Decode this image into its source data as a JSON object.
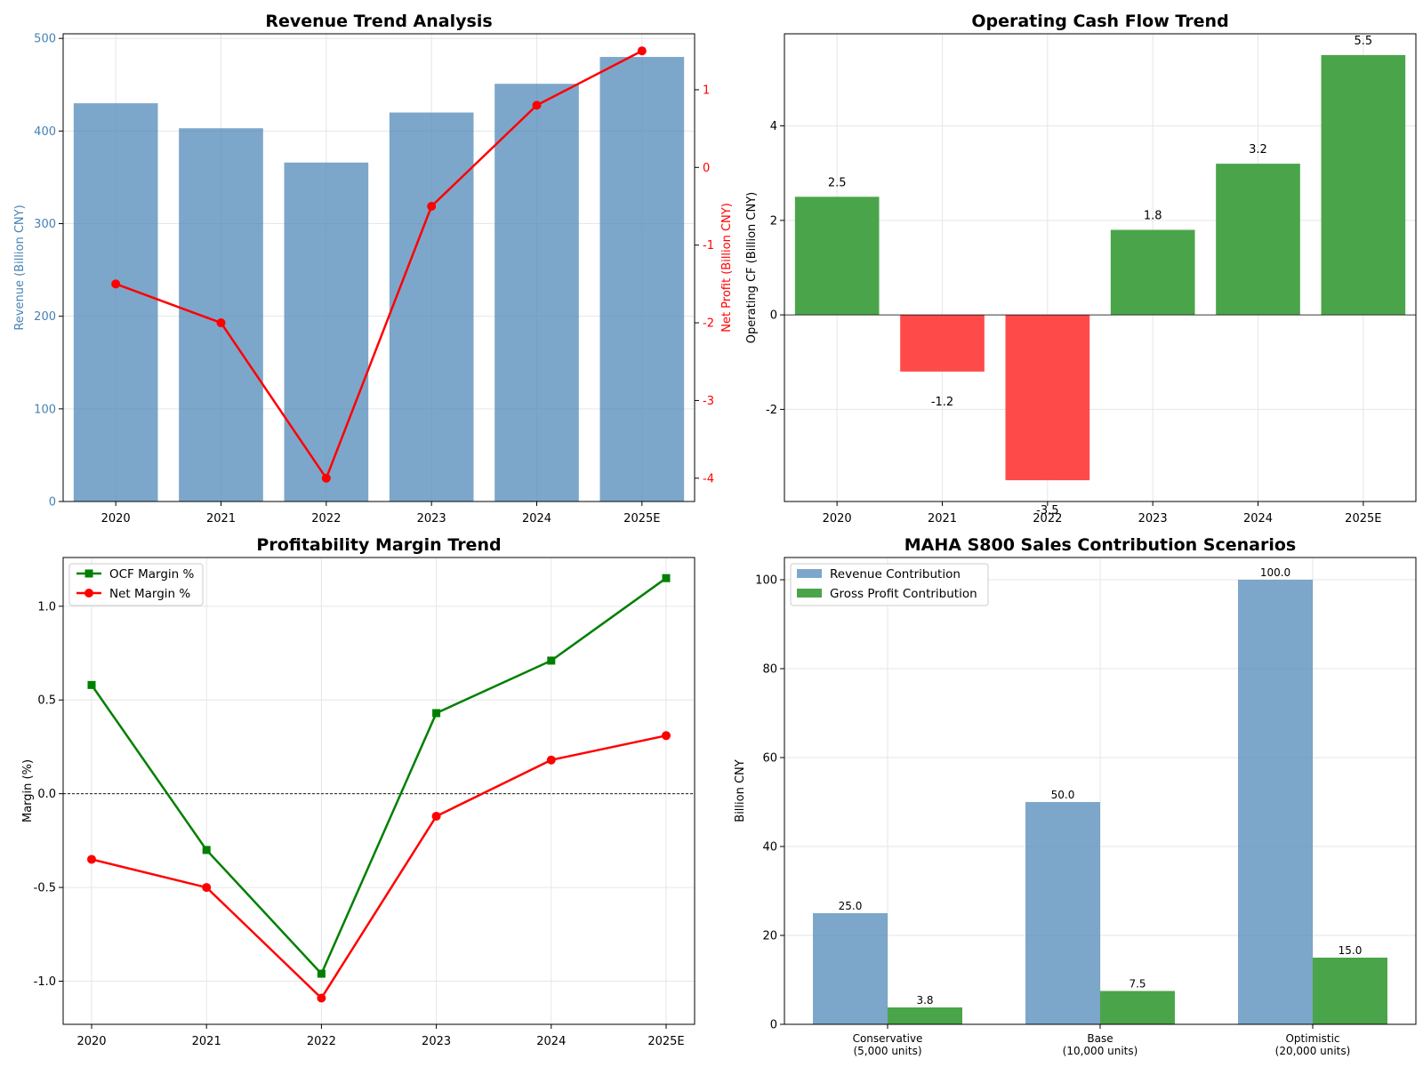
{
  "chart_data": [
    {
      "type": "bar",
      "title": "Revenue Trend Analysis",
      "categories": [
        "2020",
        "2021",
        "2022",
        "2023",
        "2024",
        "2025E"
      ],
      "ylabel": "Revenue (Billion CNY)",
      "y2label": "Net Profit (Billion CNY)",
      "ylim": [
        0,
        505
      ],
      "y2lim": [
        -4.3,
        1.72
      ],
      "yticks": [
        "0",
        "100",
        "200",
        "300",
        "400",
        "500"
      ],
      "y2ticks": [
        "-4",
        "-3",
        "-2",
        "-1",
        "0",
        "1"
      ],
      "grid": true,
      "series": [
        {
          "name": "Revenue",
          "type": "bar",
          "axis": "left",
          "color": "#4682b4",
          "values": [
            430,
            403,
            366,
            420,
            451,
            480
          ]
        },
        {
          "name": "Net Profit",
          "type": "line",
          "axis": "right",
          "color": "#ff0000",
          "marker": "circle",
          "values": [
            -1.5,
            -2.0,
            -4.0,
            -0.5,
            0.8,
            1.5
          ]
        }
      ],
      "colors": {
        "left_axis": "#4682b4",
        "right_axis": "#ff0000"
      }
    },
    {
      "type": "bar",
      "title": "Operating Cash Flow Trend",
      "categories": [
        "2020",
        "2021",
        "2022",
        "2023",
        "2024",
        "2025E"
      ],
      "ylabel": "Operating CF (Billion CNY)",
      "ylim": [
        -3.95,
        5.95
      ],
      "yticks": [
        "-2",
        "0",
        "2",
        "4"
      ],
      "grid": true,
      "values": [
        2.5,
        -1.2,
        -3.5,
        1.8,
        3.2,
        5.5
      ],
      "data_labels": [
        "2.5",
        "-1.2",
        "-3.5",
        "1.8",
        "3.2",
        "5.5"
      ],
      "colors": {
        "positive": "#4aa54a",
        "negative": "#ff4a4a"
      }
    },
    {
      "type": "line",
      "title": "Profitability Margin Trend",
      "categories": [
        "2020",
        "2021",
        "2022",
        "2023",
        "2024",
        "2025E"
      ],
      "ylabel": "Margin (%)",
      "ylim": [
        -1.23,
        1.26
      ],
      "yticks": [
        "-1.0",
        "-0.5",
        "0.0",
        "0.5",
        "1.0"
      ],
      "grid": true,
      "legend": "top-left",
      "series": [
        {
          "name": "OCF Margin %",
          "color": "#008000",
          "marker": "square",
          "values": [
            0.58,
            -0.3,
            -0.96,
            0.43,
            0.71,
            1.15
          ]
        },
        {
          "name": "Net Margin %",
          "color": "#ff0000",
          "marker": "circle",
          "values": [
            -0.35,
            -0.5,
            -1.09,
            -0.12,
            0.18,
            0.31
          ]
        }
      ]
    },
    {
      "type": "bar",
      "title": "MAHA S800 Sales Contribution Scenarios",
      "categories": [
        [
          "Conservative",
          "(5,000 units)"
        ],
        [
          "Base",
          "(10,000 units)"
        ],
        [
          "Optimistic",
          "(20,000 units)"
        ]
      ],
      "ylabel": "Billion CNY",
      "ylim": [
        0,
        105
      ],
      "yticks": [
        "0",
        "20",
        "40",
        "60",
        "80",
        "100"
      ],
      "grid": true,
      "legend": "top-left",
      "series": [
        {
          "name": "Revenue Contribution",
          "color": "#4682b4",
          "values": [
            25.0,
            50.0,
            100.0
          ],
          "data_labels": [
            "25.0",
            "50.0",
            "100.0"
          ]
        },
        {
          "name": "Gross Profit Contribution",
          "color": "#4aa54a",
          "values": [
            3.8,
            7.5,
            15.0
          ],
          "data_labels": [
            "3.8",
            "7.5",
            "15.0"
          ]
        }
      ]
    }
  ]
}
